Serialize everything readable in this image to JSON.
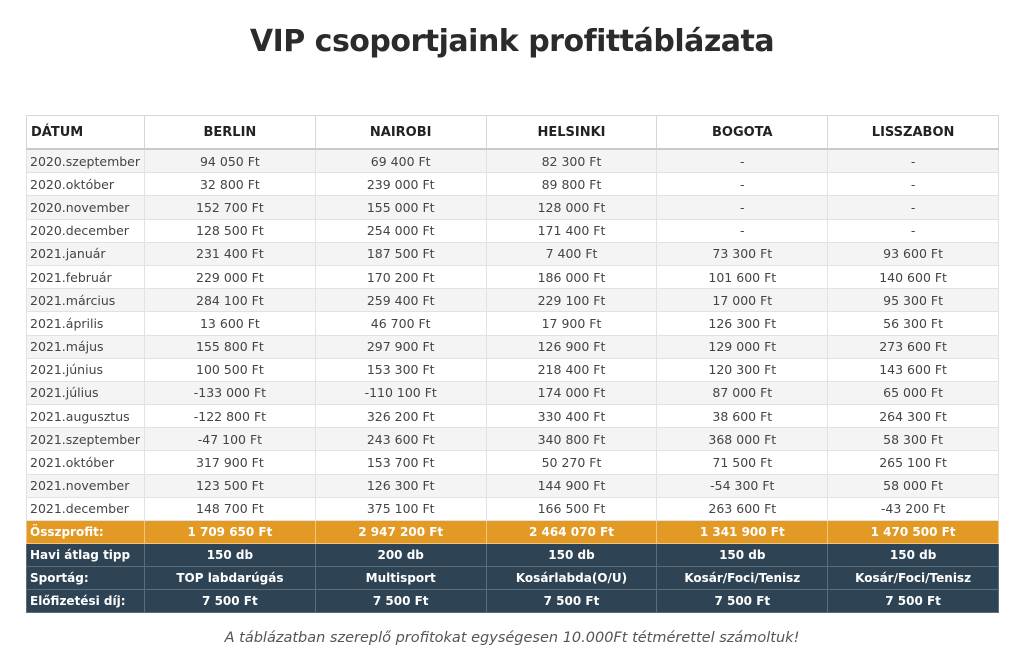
{
  "title": "VIP csoportjaink profittáblázata",
  "headers": [
    "DÁTUM",
    "BERLIN",
    "NAIROBI",
    "HELSINKI",
    "BOGOTA",
    "LISSZABON"
  ],
  "rows": [
    [
      "2020.szeptember",
      "94 050 Ft",
      "69 400 Ft",
      "82 300 Ft",
      "-",
      "-"
    ],
    [
      "2020.október",
      "32 800 Ft",
      "239 000 Ft",
      "89 800 Ft",
      "-",
      "-"
    ],
    [
      "2020.november",
      "152 700 Ft",
      "155 000 Ft",
      "128 000 Ft",
      "-",
      "-"
    ],
    [
      "2020.december",
      "128 500 Ft",
      "254 000 Ft",
      "171 400 Ft",
      "-",
      "-"
    ],
    [
      "2021.január",
      "231 400 Ft",
      "187 500 Ft",
      "7 400 Ft",
      "73 300 Ft",
      "93 600 Ft"
    ],
    [
      "2021.február",
      "229 000 Ft",
      "170 200 Ft",
      "186 000 Ft",
      "101 600 Ft",
      "140 600 Ft"
    ],
    [
      "2021.március",
      "284 100 Ft",
      "259 400 Ft",
      "229 100 Ft",
      "17 000 Ft",
      "95 300 Ft"
    ],
    [
      "2021.április",
      "13 600 Ft",
      "46 700 Ft",
      "17 900 Ft",
      "126 300 Ft",
      "56 300 Ft"
    ],
    [
      "2021.május",
      "155 800 Ft",
      "297 900 Ft",
      "126 900 Ft",
      "129 000 Ft",
      "273 600 Ft"
    ],
    [
      "2021.június",
      "100 500 Ft",
      "153 300 Ft",
      "218 400 Ft",
      "120 300 Ft",
      "143 600 Ft"
    ],
    [
      "2021.július",
      "-133 000 Ft",
      "-110 100 Ft",
      "174 000 Ft",
      "87 000 Ft",
      "65 000 Ft"
    ],
    [
      "2021.augusztus",
      "-122 800 Ft",
      "326 200 Ft",
      "330 400 Ft",
      "38 600 Ft",
      "264 300 Ft"
    ],
    [
      "2021.szeptember",
      "-47 100 Ft",
      "243 600 Ft",
      "340 800 Ft",
      "368 000 Ft",
      "58 300 Ft"
    ],
    [
      "2021.október",
      "317 900 Ft",
      "153 700 Ft",
      "50 270 Ft",
      "71 500 Ft",
      "265 100 Ft"
    ],
    [
      "2021.november",
      "123 500 Ft",
      "126 300 Ft",
      "144 900 Ft",
      "-54 300 Ft",
      "58 000 Ft"
    ],
    [
      "2021.december",
      "148 700 Ft",
      "375 100 Ft",
      "166 500 Ft",
      "263 600 Ft",
      "-43 200 Ft"
    ]
  ],
  "total": [
    "Összprofit:",
    "1 709 650 Ft",
    "2 947 200 Ft",
    "2 464 070 Ft",
    "1 341 900 Ft",
    "1 470 500 Ft"
  ],
  "summary": [
    [
      "Havi átlag tipp",
      "150 db",
      "200 db",
      "150 db",
      "150 db",
      "150 db"
    ],
    [
      "Sportág:",
      "TOP labdarúgás",
      "Multisport",
      "Kosárlabda(O/U)",
      "Kosár/Foci/Tenisz",
      "Kosár/Foci/Tenisz"
    ],
    [
      "Előfizetési díj:",
      "7 500 Ft",
      "7 500 Ft",
      "7 500 Ft",
      "7 500 Ft",
      "7 500 Ft"
    ]
  ],
  "footnote": "A táblázatban szereplő profitokat egységesen 10.000Ft tétmérettel számoltuk!",
  "colors": {
    "total_bg": "#e29a24",
    "dark_bg": "#2e4454"
  }
}
